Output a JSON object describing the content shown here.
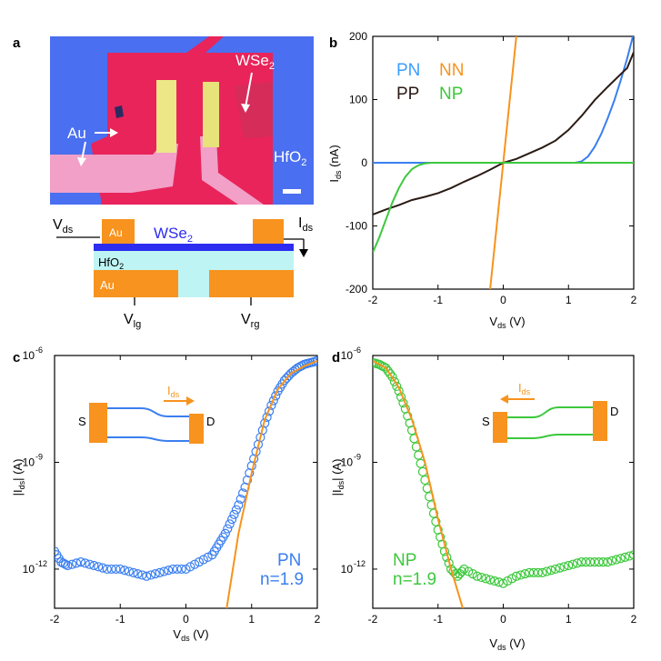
{
  "panels": {
    "a": {
      "label": "a",
      "micrograph": {
        "labels": {
          "wse2": "WSe",
          "wse2_sub": "2",
          "au": "Au",
          "hfo2": "HfO",
          "hfo2_sub": "2"
        }
      },
      "schematic": {
        "vds": "V",
        "vds_sub": "ds",
        "ids": "I",
        "ids_sub": "ds",
        "wse2": "WSe",
        "wse2_sub": "2",
        "au_top_left": "Au",
        "hfo2": "HfO",
        "hfo2_sub": "2",
        "au_bottom": "Au",
        "vlg": "V",
        "vlg_sub": "lg",
        "vrg": "V",
        "vrg_sub": "rg"
      },
      "colors": {
        "background_blue": "#4a6ff0",
        "flake_red": "#e8245a",
        "au_pink": "#f2a0c8",
        "au_yellow": "#e8e27a",
        "schematic_au": "#f7931e",
        "schematic_wse2": "#2d2df0",
        "schematic_hfo2": "#bff4f4"
      }
    },
    "b": {
      "label": "b",
      "legend": {
        "pn": "PN",
        "nn": "NN",
        "pp": "PP",
        "np": "NP"
      },
      "ylabel": "I",
      "ylabel_sub": "ds",
      "ylabel_unit": " (nA)",
      "xlabel": "V",
      "xlabel_sub": "ds",
      "xlabel_unit": " (V)"
    },
    "c": {
      "label": "c",
      "annotation_mode": "PN",
      "annotation_n": "n=1.9",
      "inset": {
        "s": "S",
        "d": "D",
        "ids": "I",
        "ids_sub": "ds"
      },
      "ylabel": "|I",
      "ylabel_sub": "ds",
      "ylabel_unit": "| (A)",
      "xlabel": "V",
      "xlabel_sub": "ds",
      "xlabel_unit": " (V)"
    },
    "d": {
      "label": "d",
      "annotation_mode": "NP",
      "annotation_n": "n=1.9",
      "inset": {
        "s": "S",
        "d": "D",
        "ids": "I",
        "ids_sub": "ds"
      },
      "ylabel": "|I",
      "ylabel_sub": "ds",
      "ylabel_unit": "| (A)",
      "xlabel": "V",
      "xlabel_sub": "ds",
      "xlabel_unit": " (V)"
    }
  },
  "chart_data": [
    {
      "panel": "b",
      "type": "line",
      "xlim": [
        -2,
        2
      ],
      "ylim": [
        -200,
        200
      ],
      "xticks": [
        -2,
        -1,
        0,
        1,
        2
      ],
      "yticks": [
        -200,
        -100,
        0,
        100,
        200
      ],
      "series": [
        {
          "name": "PN",
          "color": "#3a7ff0",
          "x": [
            -2,
            1.0,
            1.1,
            1.2,
            1.3,
            1.4,
            1.5,
            1.6,
            1.7,
            1.8,
            1.9,
            2.0
          ],
          "y": [
            0,
            0,
            0,
            2,
            10,
            25,
            45,
            70,
            98,
            130,
            165,
            205
          ]
        },
        {
          "name": "NN",
          "color": "#f7931e",
          "x": [
            -0.2,
            0,
            0.2
          ],
          "y": [
            -200,
            0,
            200
          ]
        },
        {
          "name": "PP",
          "color": "#2a1a14",
          "x": [
            -2,
            -1.8,
            -1.6,
            -1.4,
            -1.2,
            -1.0,
            -0.8,
            -0.6,
            -0.4,
            -0.2,
            0,
            0.2,
            0.4,
            0.6,
            0.8,
            1.0,
            1.2,
            1.4,
            1.6,
            1.8,
            1.9,
            2.0
          ],
          "y": [
            -82,
            -74,
            -67,
            -59,
            -54,
            -48,
            -40,
            -30,
            -21,
            -11,
            0,
            6,
            15,
            24,
            35,
            52,
            74,
            99,
            120,
            140,
            150,
            175
          ]
        },
        {
          "name": "NP",
          "color": "#3cc83c",
          "x": [
            -2.0,
            -1.9,
            -1.8,
            -1.7,
            -1.6,
            -1.5,
            -1.4,
            -1.3,
            -1.2,
            -1.1,
            -1.0,
            2.0
          ],
          "y": [
            -142,
            -118,
            -90,
            -63,
            -40,
            -22,
            -10,
            -4,
            -1,
            0,
            0,
            0
          ]
        }
      ]
    },
    {
      "panel": "c",
      "type": "scatter",
      "xlim": [
        -2,
        2
      ],
      "ylog": true,
      "ylim_exp": [
        -13.1,
        -6
      ],
      "xticks": [
        -2,
        -1,
        0,
        1,
        2
      ],
      "yticks_exp": [
        -12,
        -9,
        -6
      ],
      "series": [
        {
          "name": "PN data",
          "color": "#3a7ff0",
          "x": [
            -2.0,
            -1.9,
            -1.8,
            -1.6,
            -1.4,
            -1.2,
            -1.0,
            -0.8,
            -0.6,
            -0.4,
            -0.2,
            0.0,
            0.2,
            0.4,
            0.5,
            0.6,
            0.7,
            0.8,
            0.9,
            1.0,
            1.1,
            1.2,
            1.3,
            1.4,
            1.5,
            1.6,
            1.7,
            1.8,
            1.9,
            2.0
          ],
          "y_exp": [
            -11.5,
            -11.8,
            -11.9,
            -11.8,
            -11.9,
            -12.0,
            -12.0,
            -12.1,
            -12.2,
            -12.1,
            -12.0,
            -12.0,
            -11.8,
            -11.6,
            -11.3,
            -11.0,
            -10.6,
            -10.2,
            -9.7,
            -9.1,
            -8.5,
            -7.9,
            -7.4,
            -7.0,
            -6.7,
            -6.5,
            -6.35,
            -6.25,
            -6.2,
            -6.15
          ]
        },
        {
          "name": "PN fit",
          "color": "#f7931e",
          "x": [
            0.62,
            0.8,
            1.0,
            1.2,
            1.4,
            1.6,
            1.8,
            2.0
          ],
          "y_exp": [
            -13.1,
            -11.0,
            -9.3,
            -7.8,
            -6.95,
            -6.5,
            -6.3,
            -6.15
          ]
        }
      ]
    },
    {
      "panel": "d",
      "type": "scatter",
      "xlim": [
        -2,
        2
      ],
      "ylog": true,
      "ylim_exp": [
        -13.1,
        -6
      ],
      "xticks": [
        -2,
        -1,
        0,
        1,
        2
      ],
      "yticks_exp": [
        -12,
        -9,
        -6
      ],
      "series": [
        {
          "name": "NP data",
          "color": "#3cc83c",
          "x": [
            -2.0,
            -1.9,
            -1.8,
            -1.7,
            -1.6,
            -1.5,
            -1.4,
            -1.3,
            -1.2,
            -1.1,
            -1.0,
            -0.9,
            -0.8,
            -0.7,
            -0.6,
            -0.4,
            -0.2,
            0.0,
            0.2,
            0.4,
            0.6,
            0.8,
            1.0,
            1.2,
            1.4,
            1.6,
            1.8,
            2.0
          ],
          "y_exp": [
            -6.2,
            -6.25,
            -6.35,
            -6.6,
            -7.0,
            -7.5,
            -8.1,
            -8.8,
            -9.5,
            -10.2,
            -10.9,
            -11.5,
            -12.0,
            -12.2,
            -12.0,
            -12.2,
            -12.3,
            -12.4,
            -12.2,
            -12.1,
            -12.1,
            -12.0,
            -11.9,
            -11.8,
            -11.8,
            -11.8,
            -11.7,
            -11.6
          ]
        },
        {
          "name": "NP fit",
          "color": "#f7931e",
          "x": [
            -2.0,
            -1.8,
            -1.6,
            -1.4,
            -1.2,
            -1.0,
            -0.8,
            -0.62
          ],
          "y_exp": [
            -6.15,
            -6.35,
            -6.9,
            -7.8,
            -9.0,
            -10.6,
            -12.0,
            -13.1
          ]
        }
      ]
    }
  ]
}
